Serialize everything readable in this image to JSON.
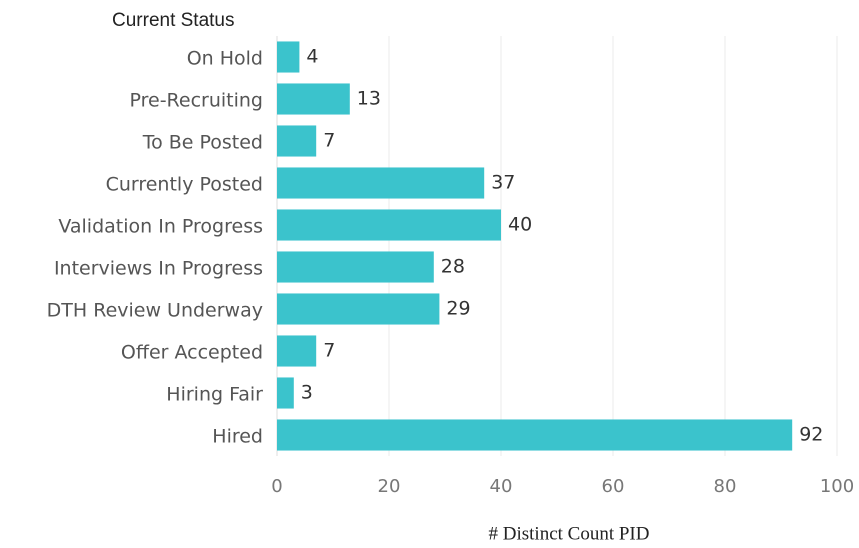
{
  "chart_data": {
    "type": "barh",
    "y_label": "Current Status",
    "x_label": "# Distinct Count PID",
    "categories": [
      "On Hold",
      "Pre-Recruiting",
      "To Be Posted",
      "Currently Posted",
      "Validation In Progress",
      "Interviews In Progress",
      "DTH Review Underway",
      "Offer Accepted",
      "Hiring Fair",
      "Hired"
    ],
    "values": [
      4,
      13,
      7,
      37,
      40,
      28,
      29,
      7,
      3,
      92
    ],
    "color": "#3bc3cc",
    "xlim": [
      0,
      100
    ],
    "xticks": [
      0,
      20,
      40,
      60,
      80,
      100
    ],
    "grid": true
  }
}
